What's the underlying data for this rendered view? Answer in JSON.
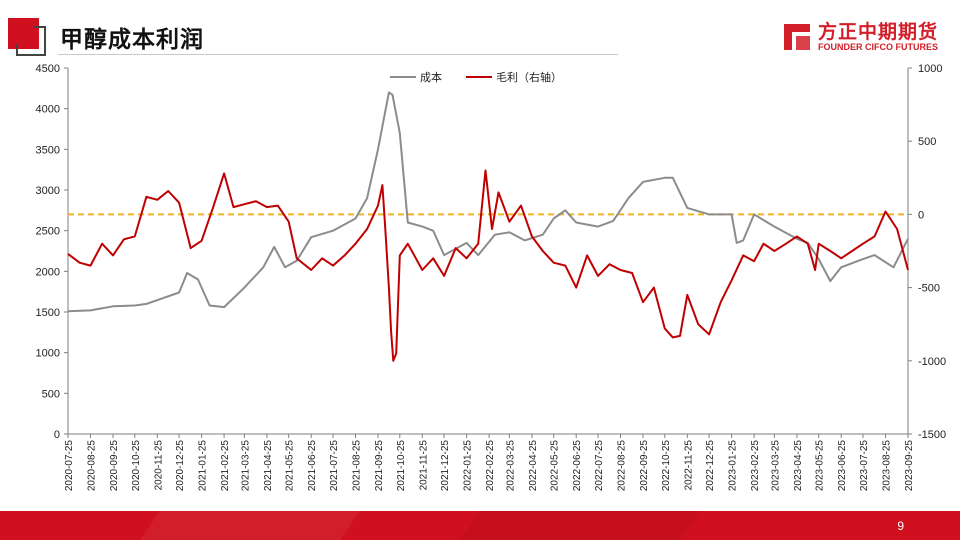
{
  "header": {
    "title": "甲醇成本利润",
    "brand_name": "方正中期期货",
    "brand_en": "FOUNDER CIFCO FUTURES",
    "brand_color": "#d21f2a"
  },
  "footer": {
    "page_number": "9",
    "bar_color": "#d0101e"
  },
  "chart_data": {
    "type": "line",
    "legend": {
      "position": "top",
      "entries": [
        "成本",
        "毛利（右轴）"
      ]
    },
    "y_left": {
      "min": 0,
      "max": 4500,
      "ticks": [
        0,
        500,
        1000,
        1500,
        2000,
        2500,
        3000,
        3500,
        4000,
        4500
      ]
    },
    "y_right": {
      "min": -1500,
      "max": 1000,
      "ticks": [
        -1500,
        -1000,
        -500,
        0,
        500,
        1000
      ]
    },
    "x_ticks": [
      "2020-07-25",
      "2020-08-25",
      "2020-09-25",
      "2020-10-25",
      "2020-11-25",
      "2020-12-25",
      "2021-01-25",
      "2021-02-25",
      "2021-03-25",
      "2021-04-25",
      "2021-05-25",
      "2021-06-25",
      "2021-07-25",
      "2021-08-25",
      "2021-09-25",
      "2021-10-25",
      "2021-11-25",
      "2021-12-25",
      "2022-01-25",
      "2022-02-25",
      "2022-03-25",
      "2022-04-25",
      "2022-05-25",
      "2022-06-25",
      "2022-07-25",
      "2022-08-25",
      "2022-09-25",
      "2022-10-25",
      "2022-11-25",
      "2022-12-25",
      "2023-01-25",
      "2023-02-25",
      "2023-03-25",
      "2023-04-25",
      "2023-05-25",
      "2023-06-25",
      "2023-07-25",
      "2023-08-25",
      "2023-09-25"
    ],
    "grid": false,
    "reference_line": {
      "axis": "right",
      "value": 0,
      "color": "#f0b323",
      "style": "dashed"
    },
    "series": [
      {
        "name": "成本",
        "axis": "left",
        "color": "#8c8c8c",
        "x": [
          "2020-07-25",
          "2020-08-25",
          "2020-09-25",
          "2020-10-25",
          "2020-11-10",
          "2020-12-25",
          "2021-01-05",
          "2021-01-20",
          "2021-02-05",
          "2021-02-25",
          "2021-03-25",
          "2021-04-20",
          "2021-05-05",
          "2021-05-20",
          "2021-06-05",
          "2021-06-25",
          "2021-07-25",
          "2021-08-25",
          "2021-09-10",
          "2021-09-25",
          "2021-10-10",
          "2021-10-15",
          "2021-10-25",
          "2021-11-05",
          "2021-11-25",
          "2021-12-10",
          "2021-12-25",
          "2022-01-25",
          "2022-02-10",
          "2022-03-05",
          "2022-03-25",
          "2022-04-15",
          "2022-05-10",
          "2022-05-25",
          "2022-06-10",
          "2022-06-25",
          "2022-07-25",
          "2022-08-15",
          "2022-09-05",
          "2022-09-25",
          "2022-10-25",
          "2022-11-05",
          "2022-11-25",
          "2022-12-25",
          "2023-01-25",
          "2023-02-01",
          "2023-02-10",
          "2023-02-25",
          "2023-03-25",
          "2023-04-25",
          "2023-05-10",
          "2023-05-25",
          "2023-06-10",
          "2023-06-25",
          "2023-07-25",
          "2023-08-10",
          "2023-09-05",
          "2023-09-25"
        ],
        "values": [
          1510,
          1520,
          1570,
          1580,
          1600,
          1740,
          1980,
          1900,
          1580,
          1560,
          1800,
          2050,
          2300,
          2050,
          2130,
          2420,
          2500,
          2650,
          2900,
          3500,
          4200,
          4170,
          3700,
          2600,
          2550,
          2500,
          2200,
          2350,
          2200,
          2450,
          2480,
          2380,
          2450,
          2650,
          2750,
          2600,
          2550,
          2620,
          2900,
          3100,
          3150,
          3150,
          2780,
          2700,
          2700,
          2350,
          2380,
          2700,
          2550,
          2400,
          2350,
          2150,
          1880,
          2050,
          2150,
          2200,
          2050,
          2400
        ]
      },
      {
        "name": "毛利（右轴）",
        "axis": "right",
        "color": "#c00000",
        "x": [
          "2020-07-25",
          "2020-08-10",
          "2020-08-25",
          "2020-09-10",
          "2020-09-25",
          "2020-10-10",
          "2020-10-25",
          "2020-11-10",
          "2020-11-25",
          "2020-12-10",
          "2020-12-25",
          "2021-01-10",
          "2021-01-25",
          "2021-02-10",
          "2021-02-25",
          "2021-03-10",
          "2021-03-25",
          "2021-04-10",
          "2021-04-25",
          "2021-05-10",
          "2021-05-25",
          "2021-06-05",
          "2021-06-25",
          "2021-07-10",
          "2021-07-25",
          "2021-08-10",
          "2021-08-25",
          "2021-09-10",
          "2021-09-25",
          "2021-10-01",
          "2021-10-05",
          "2021-10-10",
          "2021-10-13",
          "2021-10-16",
          "2021-10-20",
          "2021-10-25",
          "2021-11-05",
          "2021-11-25",
          "2021-12-10",
          "2021-12-25",
          "2022-01-10",
          "2022-01-25",
          "2022-02-10",
          "2022-02-20",
          "2022-03-01",
          "2022-03-10",
          "2022-03-25",
          "2022-04-10",
          "2022-04-25",
          "2022-05-10",
          "2022-05-25",
          "2022-06-10",
          "2022-06-25",
          "2022-07-10",
          "2022-07-25",
          "2022-08-10",
          "2022-08-25",
          "2022-09-10",
          "2022-09-25",
          "2022-10-10",
          "2022-10-25",
          "2022-11-05",
          "2022-11-15",
          "2022-11-25",
          "2022-12-10",
          "2022-12-25",
          "2023-01-10",
          "2023-01-25",
          "2023-02-10",
          "2023-02-25",
          "2023-03-10",
          "2023-03-25",
          "2023-04-10",
          "2023-04-25",
          "2023-05-10",
          "2023-05-20",
          "2023-05-25",
          "2023-06-10",
          "2023-06-25",
          "2023-07-10",
          "2023-07-25",
          "2023-08-10",
          "2023-08-25",
          "2023-09-10",
          "2023-09-25"
        ],
        "values": [
          -270,
          -330,
          -350,
          -200,
          -280,
          -170,
          -150,
          120,
          100,
          160,
          80,
          -230,
          -180,
          50,
          280,
          50,
          70,
          90,
          50,
          60,
          -50,
          -300,
          -380,
          -300,
          -350,
          -280,
          -200,
          -100,
          60,
          200,
          -100,
          -500,
          -800,
          -1000,
          -950,
          -280,
          -200,
          -380,
          -300,
          -420,
          -230,
          -300,
          -200,
          300,
          -100,
          150,
          -50,
          60,
          -150,
          -250,
          -330,
          -350,
          -500,
          -280,
          -420,
          -340,
          -380,
          -400,
          -600,
          -500,
          -780,
          -840,
          -830,
          -550,
          -750,
          -820,
          -600,
          -450,
          -280,
          -320,
          -200,
          -250,
          -200,
          -150,
          -200,
          -380,
          -200,
          -250,
          -300,
          -250,
          -200,
          -150,
          20,
          -100,
          -380
        ]
      }
    ]
  }
}
